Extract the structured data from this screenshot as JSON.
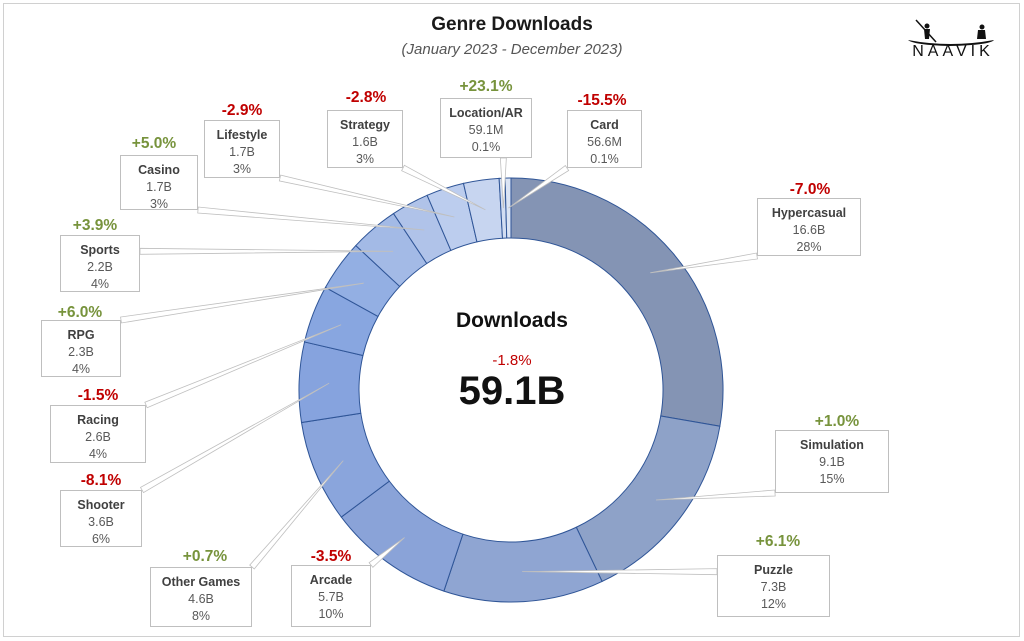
{
  "header": {
    "title": "Genre Downloads",
    "subtitle": "(January 2023 - December 2023)",
    "brand": "NAAVIK"
  },
  "center": {
    "title": "Downloads",
    "change": "-1.8%",
    "total": "59.1B"
  },
  "colors": {
    "positive": "#77933c",
    "negative": "#c00000",
    "slice_dark": "#7f8fb0",
    "slice_light": "#c8d6ee"
  },
  "chart_data": {
    "type": "pie",
    "variant": "donut",
    "title": "Genre Downloads",
    "subtitle": "(January 2023 - December 2023)",
    "center_title": "Downloads",
    "center_total": "59.1B",
    "center_change": "-1.8%",
    "slices": [
      {
        "name": "Hypercasual",
        "value_label": "16.6B",
        "value": 16.6,
        "share_label": "28%",
        "share": 28,
        "change": "-7.0%"
      },
      {
        "name": "Simulation",
        "value_label": "9.1B",
        "value": 9.1,
        "share_label": "15%",
        "share": 15,
        "change": "+1.0%"
      },
      {
        "name": "Puzzle",
        "value_label": "7.3B",
        "value": 7.3,
        "share_label": "12%",
        "share": 12,
        "change": "+6.1%"
      },
      {
        "name": "Arcade",
        "value_label": "5.7B",
        "value": 5.7,
        "share_label": "10%",
        "share": 10,
        "change": "-3.5%"
      },
      {
        "name": "Other Games",
        "value_label": "4.6B",
        "value": 4.6,
        "share_label": "8%",
        "share": 8,
        "change": "+0.7%"
      },
      {
        "name": "Shooter",
        "value_label": "3.6B",
        "value": 3.6,
        "share_label": "6%",
        "share": 6,
        "change": "-8.1%"
      },
      {
        "name": "Racing",
        "value_label": "2.6B",
        "value": 2.6,
        "share_label": "4%",
        "share": 4,
        "change": "-1.5%"
      },
      {
        "name": "RPG",
        "value_label": "2.3B",
        "value": 2.3,
        "share_label": "4%",
        "share": 4,
        "change": "+6.0%"
      },
      {
        "name": "Sports",
        "value_label": "2.2B",
        "value": 2.2,
        "share_label": "4%",
        "share": 4,
        "change": "+3.9%"
      },
      {
        "name": "Casino",
        "value_label": "1.7B",
        "value": 1.7,
        "share_label": "3%",
        "share": 3,
        "change": "+5.0%"
      },
      {
        "name": "Lifestyle",
        "value_label": "1.7B",
        "value": 1.7,
        "share_label": "3%",
        "share": 3,
        "change": "-2.9%"
      },
      {
        "name": "Strategy",
        "value_label": "1.6B",
        "value": 1.6,
        "share_label": "3%",
        "share": 3,
        "change": "-2.8%"
      },
      {
        "name": "Location/AR",
        "value_label": "59.1M",
        "value": 0.0591,
        "share_label": "0.1%",
        "share": 0.1,
        "change": "+23.1%"
      },
      {
        "name": "Card",
        "value_label": "56.6M",
        "value": 0.0566,
        "share_label": "0.1%",
        "share": 0.1,
        "change": "-15.5%"
      }
    ]
  }
}
